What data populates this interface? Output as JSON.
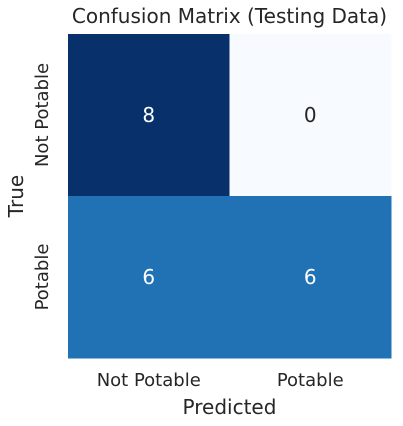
{
  "chart_data": {
    "type": "heatmap",
    "title": "Confusion Matrix (Testing Data)",
    "xlabel": "Predicted",
    "ylabel": "True",
    "x_categories": [
      "Not Potable",
      "Potable"
    ],
    "y_categories": [
      "Not Potable",
      "Potable"
    ],
    "values": [
      [
        8,
        0
      ],
      [
        6,
        6
      ]
    ],
    "colormap": "Blues",
    "vmin": 0,
    "vmax": 8,
    "colors": {
      "cell_8": "#08306b",
      "cell_6": "#2171b5",
      "cell_0": "#f7fbff",
      "text_dark_bg": "#ffffff",
      "text_light_bg": "#262626"
    }
  }
}
